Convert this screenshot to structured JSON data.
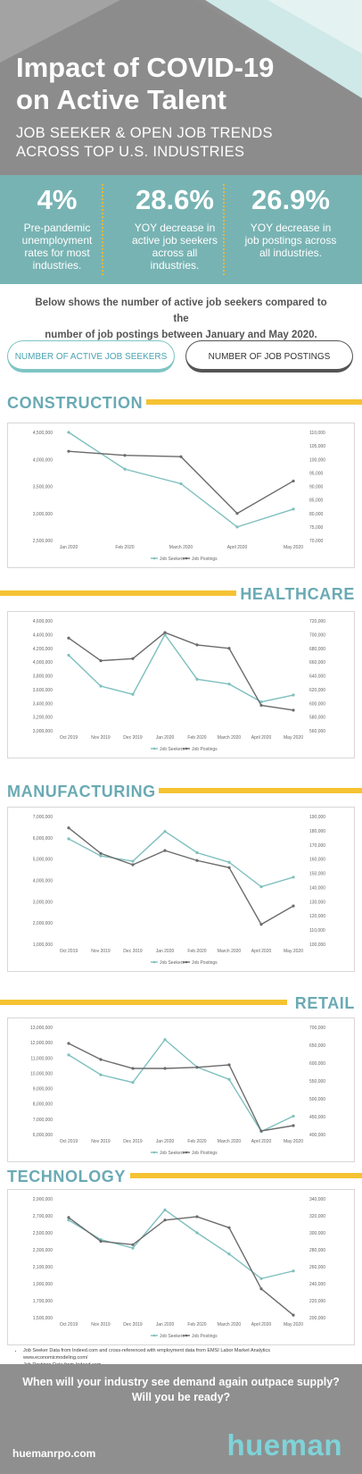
{
  "header": {
    "title_line1": "Impact of COVID-19",
    "title_line2": "on Active Talent",
    "subtitle_line1": "JOB SEEKER & OPEN JOB TRENDS",
    "subtitle_line2": "ACROSS TOP U.S. INDUSTRIES"
  },
  "stats": [
    {
      "value": "4%",
      "label_line1": "Pre-pandemic",
      "label_line2": "unemployment",
      "label_line3": "rates for most",
      "label_line4": "industries."
    },
    {
      "value": "28.6%",
      "label_line1": "YOY decrease in",
      "label_line2": "active job seekers",
      "label_line3": "across all",
      "label_line4": "industries."
    },
    {
      "value": "26.9%",
      "label_line1": "YOY decrease in",
      "label_line2": "job postings across",
      "label_line3": "all industries.",
      "label_line4": ""
    }
  ],
  "intro_line1": "Below shows the number of active job seekers compared to the",
  "intro_line2": "number of job postings between January and May 2020.",
  "buttons": {
    "seekers": "NUMBER OF ACTIVE JOB SEEKERS",
    "postings": "NUMBER OF JOB POSTINGS"
  },
  "colors": {
    "seekers": "#7fbfbf",
    "postings": "#6b6b6b",
    "accent": "#f5c232",
    "teal": "#78b3b3",
    "gray": "#8f8f8f"
  },
  "chart_data": [
    {
      "type": "line",
      "title": "CONSTRUCTION",
      "categories": [
        "Jan 2020",
        "Feb 2020",
        "March 2020",
        "April 2020",
        "May 2020"
      ],
      "left_ticks": [
        "4,500,000",
        "4,000,000",
        "3,500,000",
        "3,000,000",
        "2,500,000"
      ],
      "right_ticks": [
        "110,000",
        "105,000",
        "100,000",
        "95,000",
        "90,000",
        "85,000",
        "80,000",
        "75,000",
        "70,000"
      ],
      "ylim_left": [
        2500000,
        4500000
      ],
      "ylim_right": [
        70000,
        110000
      ],
      "series": [
        {
          "name": "Job Seekers",
          "axis": "left",
          "values": [
            4500000,
            3820000,
            3550000,
            2750000,
            3080000
          ]
        },
        {
          "name": "Job Postings",
          "axis": "right",
          "values": [
            103000,
            101500,
            101000,
            80000,
            92000
          ]
        }
      ]
    },
    {
      "type": "line",
      "title": "HEALTHCARE",
      "categories": [
        "Oct 2019",
        "Nov 2019",
        "Dec 2019",
        "Jan 2020",
        "Feb 2020",
        "March 2020",
        "April 2020",
        "May 2020"
      ],
      "left_ticks": [
        "4,600,000",
        "4,400,000",
        "4,200,000",
        "4,000,000",
        "3,800,000",
        "3,600,000",
        "3,400,000",
        "3,200,000",
        "3,000,000"
      ],
      "right_ticks": [
        "720,000",
        "700,000",
        "680,000",
        "660,000",
        "640,000",
        "620,000",
        "600,000",
        "580,000",
        "560,000"
      ],
      "ylim_left": [
        3000000,
        4600000
      ],
      "ylim_right": [
        560000,
        720000
      ],
      "series": [
        {
          "name": "Job Seekers",
          "axis": "left",
          "values": [
            4100000,
            3650000,
            3530000,
            4400000,
            3750000,
            3680000,
            3420000,
            3520000
          ]
        },
        {
          "name": "Job Postings",
          "axis": "right",
          "values": [
            695000,
            662000,
            665000,
            703000,
            685000,
            680000,
            597000,
            590000
          ]
        }
      ]
    },
    {
      "type": "line",
      "title": "MANUFACTURING",
      "categories": [
        "Oct 2019",
        "Nov 2019",
        "Dec 2019",
        "Jan 2020",
        "Feb 2020",
        "March 2020",
        "April 2020",
        "May 2020"
      ],
      "left_ticks": [
        "7,000,000",
        "6,000,000",
        "5,000,000",
        "4,000,000",
        "3,000,000",
        "2,000,000",
        "1,000,000"
      ],
      "right_ticks": [
        "190,000",
        "180,000",
        "170,000",
        "160,000",
        "150,000",
        "140,000",
        "130,000",
        "120,000",
        "110,000",
        "100,000"
      ],
      "ylim_left": [
        1000000,
        7000000
      ],
      "ylim_right": [
        100000,
        190000
      ],
      "series": [
        {
          "name": "Job Seekers",
          "axis": "left",
          "values": [
            5950000,
            5150000,
            4900000,
            6300000,
            5300000,
            4850000,
            3700000,
            4150000
          ]
        },
        {
          "name": "Job Postings",
          "axis": "right",
          "values": [
            182000,
            164000,
            156000,
            166000,
            159000,
            154000,
            114000,
            127000
          ]
        }
      ]
    },
    {
      "type": "line",
      "title": "RETAIL",
      "categories": [
        "Oct 2019",
        "Nov 2019",
        "Dec 2019",
        "Jan 2020",
        "Feb 2020",
        "March 2020",
        "April 2020",
        "May 2020"
      ],
      "left_ticks": [
        "13,000,000",
        "12,000,000",
        "11,000,000",
        "10,000,000",
        "9,000,000",
        "8,000,000",
        "7,000,000",
        "6,000,000"
      ],
      "right_ticks": [
        "700,000",
        "650,000",
        "600,000",
        "550,000",
        "500,000",
        "450,000",
        "400,000"
      ],
      "ylim_left": [
        6000000,
        13000000
      ],
      "ylim_right": [
        400000,
        700000
      ],
      "series": [
        {
          "name": "Job Seekers",
          "axis": "left",
          "values": [
            11200000,
            9900000,
            9400000,
            12200000,
            10400000,
            9600000,
            6200000,
            7200000
          ]
        },
        {
          "name": "Job Postings",
          "axis": "right",
          "values": [
            655000,
            610000,
            585000,
            585000,
            588000,
            595000,
            410000,
            425000
          ]
        }
      ]
    },
    {
      "type": "line",
      "title": "TECHNOLOGY",
      "categories": [
        "Oct 2019",
        "Nov 2019",
        "Dec 2019",
        "Jan 2020",
        "Feb 2020",
        "March 2020",
        "April 2020",
        "May 2020"
      ],
      "left_ticks": [
        "2,900,000",
        "2,700,000",
        "2,500,000",
        "2,300,000",
        "2,100,000",
        "1,900,000",
        "1,700,000",
        "1,500,000"
      ],
      "right_ticks": [
        "340,000",
        "320,000",
        "300,000",
        "280,000",
        "260,000",
        "240,000",
        "220,000",
        "200,000"
      ],
      "ylim_left": [
        1500000,
        2900000
      ],
      "ylim_right": [
        200000,
        340000
      ],
      "series": [
        {
          "name": "Job Seekers",
          "axis": "left",
          "values": [
            2650000,
            2420000,
            2320000,
            2770000,
            2500000,
            2250000,
            1960000,
            2050000
          ]
        },
        {
          "name": "Job Postings",
          "axis": "right",
          "values": [
            318000,
            290000,
            286000,
            315000,
            319000,
            306000,
            234000,
            203000
          ]
        }
      ]
    }
  ],
  "notes": [
    "Job Seeker Data from Indeed.com  and cross-referenced with employment data from EMSI Labor Market Analytics www.economicmodeling.com/",
    "Job Postings Data from Indeed.com"
  ],
  "footer": {
    "question_line1": "When will your industry see demand again outpace supply?",
    "question_line2": "Will you be ready?",
    "website": "huemanrpo.com",
    "brand": "hueman"
  }
}
